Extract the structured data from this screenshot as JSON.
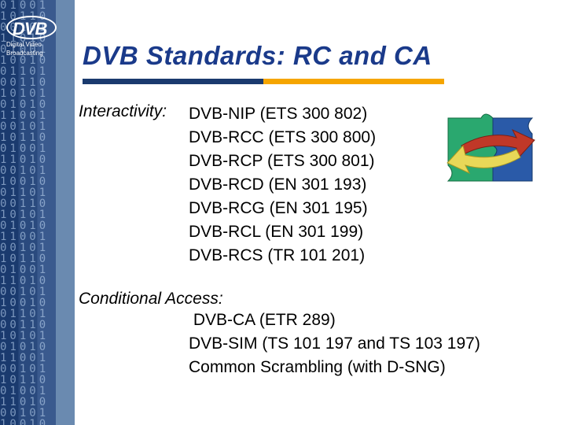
{
  "logo": {
    "text": "DVB",
    "subtitle_line1": "Digital Video",
    "subtitle_line2": "Broadcasting"
  },
  "title": {
    "text": "DVB Standards: RC and CA",
    "color": "#1a3a8a"
  },
  "accent_bar": {
    "seg1_width": 230,
    "seg2_width": 230,
    "color1": "#1a3a6e",
    "color2": "#f5a500"
  },
  "sections": {
    "interactivity": {
      "label": "Interactivity:",
      "items": [
        "DVB-NIP (ETS 300 802)",
        "DVB-RCC (ETS 300 800)",
        "DVB-RCP (ETS 300 801)",
        "DVB-RCD (EN 301 193)",
        "DVB-RCG (EN 301 195)",
        "DVB-RCL (EN 301 199)",
        "DVB-RCS (TR 101 201)"
      ]
    },
    "conditional_access": {
      "label": "Conditional Access:",
      "items": [
        " DVB-CA (ETR 289)",
        "DVB-SIM (TS 101 197 and TS 103 197)",
        "Common Scrambling (with D-SNG)"
      ]
    }
  },
  "text_color": "#000000",
  "puzzle": {
    "piece1_color": "#2aa86f",
    "piece2_color": "#2a5aa8",
    "arrow1_color": "#c03828",
    "arrow2_color": "#e8d858"
  },
  "binary_pattern": "01001\n10110\n00101\n11010\n01001\n10010\n01101\n00110\n10101\n01010\n11001\n00101\n10110\n01001\n11010\n00101\n10010\n01101\n00110\n10101\n01010\n11001\n00101\n10110\n01001\n11010\n00101\n10010\n01101\n00110\n10101\n01010\n11001\n00101\n10110\n01001\n11010\n00101\n10010"
}
